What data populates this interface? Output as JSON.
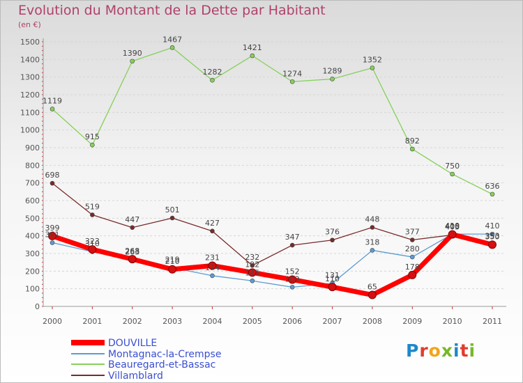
{
  "header": {
    "title": "Evolution du Montant de la Dette par Habitant",
    "unit": "(en €)"
  },
  "logo_letters": [
    "P",
    "r",
    "o",
    "x",
    "i",
    "t",
    "i"
  ],
  "chart_data": {
    "type": "line",
    "title": "Evolution du Montant de la Dette par Habitant",
    "subtitle": "(en €)",
    "x": [
      2000,
      2001,
      2002,
      2003,
      2004,
      2005,
      2006,
      2007,
      2008,
      2009,
      2010,
      2011
    ],
    "ylim": [
      0,
      1500
    ],
    "yticks": [
      0,
      100,
      200,
      300,
      400,
      500,
      600,
      700,
      800,
      900,
      1000,
      1100,
      1200,
      1300,
      1400,
      1500
    ],
    "grid": "horizontal",
    "legend_position": "bottom-left",
    "series": [
      {
        "name": "DOUVILLE",
        "color": "#ff0000",
        "values": [
          399,
          323,
          268,
          210,
          231,
          192,
          152,
          110,
          65,
          178,
          408,
          350
        ]
      },
      {
        "name": "Montagnac-la-Crempse",
        "color": "#5b9bd5",
        "values": [
          361,
          310,
          263,
          219,
          174,
          145,
          109,
          131,
          318,
          280,
          410,
          410
        ]
      },
      {
        "name": "Beauregard-et-Bassac",
        "color": "#86d05a",
        "values": [
          1119,
          915,
          1390,
          1467,
          1282,
          1421,
          1274,
          1289,
          1352,
          892,
          750,
          636
        ]
      },
      {
        "name": "Villamblard",
        "color": "#7a2a2a",
        "values": [
          698,
          519,
          447,
          501,
          427,
          232,
          347,
          376,
          448,
          377,
          405,
          353
        ]
      }
    ],
    "value_labels": {
      "DOUVILLE": [
        "399",
        "323",
        "268",
        "210",
        "231",
        "192",
        "152",
        "110",
        "65",
        "178",
        "408",
        "350"
      ],
      "Montagnac-la-Crempse": [
        "361",
        "310",
        "263",
        "219",
        "174",
        "145",
        "109",
        "131",
        "318",
        "280",
        "410",
        "410"
      ],
      "Beauregard-et-Bassac": [
        "1119",
        "915",
        "1390",
        "1467",
        "1282",
        "1421",
        "1274",
        "1289",
        "1352",
        "892",
        "750",
        "636"
      ],
      "Villamblard": [
        "698",
        "519",
        "447",
        "501",
        "427",
        "232",
        "347",
        "376",
        "448",
        "377",
        "405",
        "353"
      ]
    }
  }
}
